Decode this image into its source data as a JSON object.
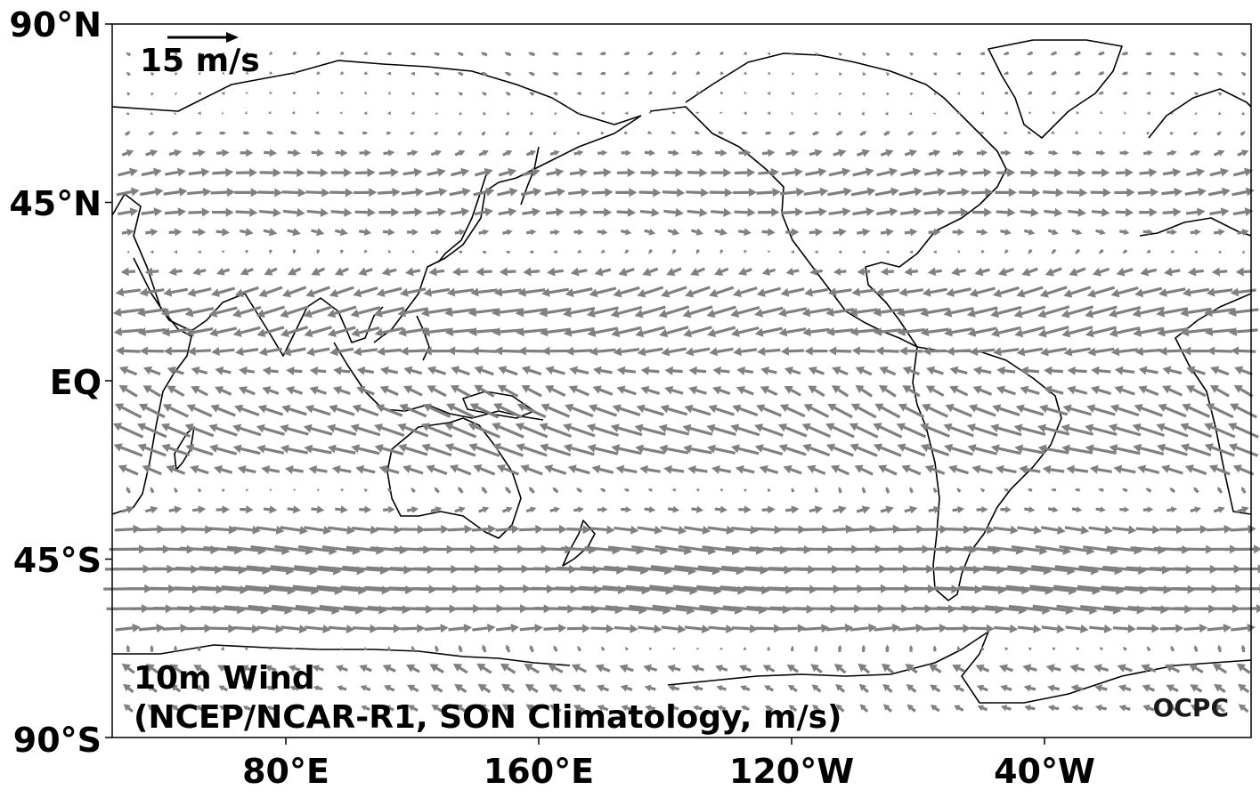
{
  "title_line1": "10m Wind",
  "title_line2": "(NCEP/NCAR-R1, SON Climatology, m/s)",
  "reference_vector": {
    "label": "15 m/s",
    "speed": 15
  },
  "logo": "OCPC",
  "y_ticks": [
    "90°N",
    "45°N",
    "EQ",
    "45°S",
    "90°S"
  ],
  "x_ticks": [
    "80°E",
    "160°E",
    "120°W",
    "40°W"
  ],
  "colors": {
    "arrow": "#808080",
    "coastline": "#000000",
    "frame": "#000000"
  },
  "chart_data": {
    "type": "vector-field",
    "projection": "equirectangular",
    "lon_range": [
      25,
      385
    ],
    "lat_range": [
      -90,
      90
    ],
    "grid": false,
    "variable": "10m wind (m/s)",
    "reference_speed": 15,
    "zonal_wind_profile": [
      {
        "lat": 80,
        "u": -1.0,
        "v": 0.0
      },
      {
        "lat": 70,
        "u": -0.5,
        "v": 0.0
      },
      {
        "lat": 60,
        "u": 1.5,
        "v": 0.3
      },
      {
        "lat": 50,
        "u": 5.0,
        "v": 0.5
      },
      {
        "lat": 40,
        "u": 4.0,
        "v": 0.0
      },
      {
        "lat": 30,
        "u": -2.0,
        "v": -0.5
      },
      {
        "lat": 20,
        "u": -6.5,
        "v": -1.5
      },
      {
        "lat": 10,
        "u": -6.0,
        "v": -1.0
      },
      {
        "lat": 0,
        "u": -3.0,
        "v": 1.5
      },
      {
        "lat": -10,
        "u": -6.5,
        "v": 2.5
      },
      {
        "lat": -20,
        "u": -6.0,
        "v": 1.5
      },
      {
        "lat": -30,
        "u": 1.0,
        "v": 0.5
      },
      {
        "lat": -40,
        "u": 7.0,
        "v": -0.5
      },
      {
        "lat": -50,
        "u": 10.5,
        "v": -0.5
      },
      {
        "lat": -55,
        "u": 10.0,
        "v": -0.5
      },
      {
        "lat": -60,
        "u": 8.0,
        "v": -0.5
      },
      {
        "lat": -70,
        "u": -3.0,
        "v": 1.5
      },
      {
        "lat": -80,
        "u": -2.0,
        "v": 1.0
      }
    ]
  }
}
